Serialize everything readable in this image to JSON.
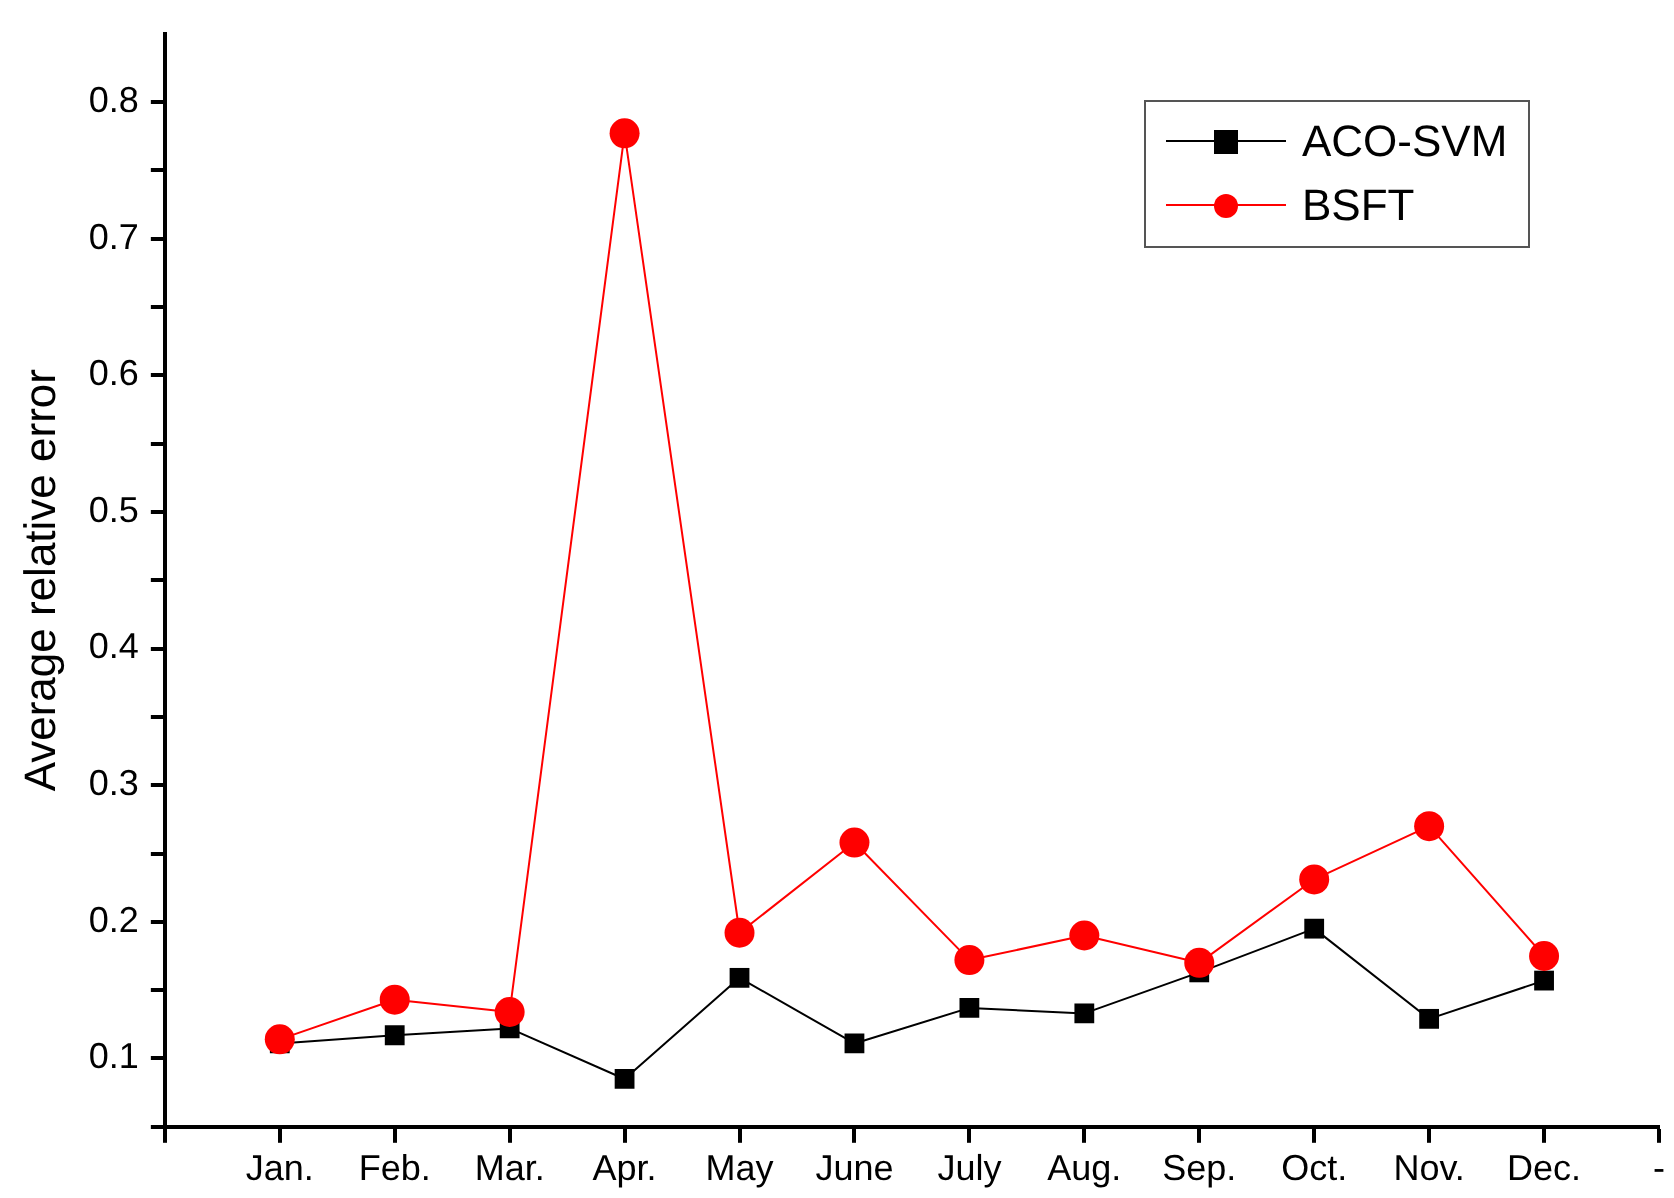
{
  "chart_data": {
    "type": "line",
    "ylabel": "Average relative error",
    "categories": [
      null,
      "Jan.",
      "Feb.",
      "Mar.",
      "Apr.",
      "May",
      "June",
      "July",
      "Aug.",
      "Sep.",
      "Oct.",
      "Nov.",
      "Dec.",
      "-"
    ],
    "series": [
      {
        "name": "ACO-SVM",
        "color": "#000000",
        "marker": "square",
        "values": [
          null,
          0.111,
          0.117,
          0.122,
          0.085,
          0.159,
          0.111,
          0.137,
          0.133,
          0.163,
          0.195,
          0.129,
          0.157,
          null
        ]
      },
      {
        "name": "BSFT",
        "color": "#ff0000",
        "marker": "circle",
        "values": [
          null,
          0.114,
          0.143,
          0.134,
          0.777,
          0.192,
          0.258,
          0.172,
          0.19,
          0.17,
          0.231,
          0.27,
          0.175,
          null
        ]
      }
    ],
    "ylim": [
      0.05,
      0.85
    ],
    "yticks": [
      {
        "value": 0.05,
        "label": null
      },
      0.1,
      {
        "value": 0.15,
        "label": null
      },
      0.2,
      {
        "value": 0.25,
        "label": null
      },
      0.3,
      {
        "value": 0.35,
        "label": null
      },
      0.4,
      {
        "value": 0.45,
        "label": null
      },
      0.5,
      {
        "value": 0.55,
        "label": null
      },
      0.6,
      {
        "value": 0.65,
        "label": null
      },
      0.7,
      {
        "value": 0.75,
        "label": null
      },
      0.8
    ],
    "grid": false,
    "legend": "top right",
    "line_style": "solid"
  }
}
